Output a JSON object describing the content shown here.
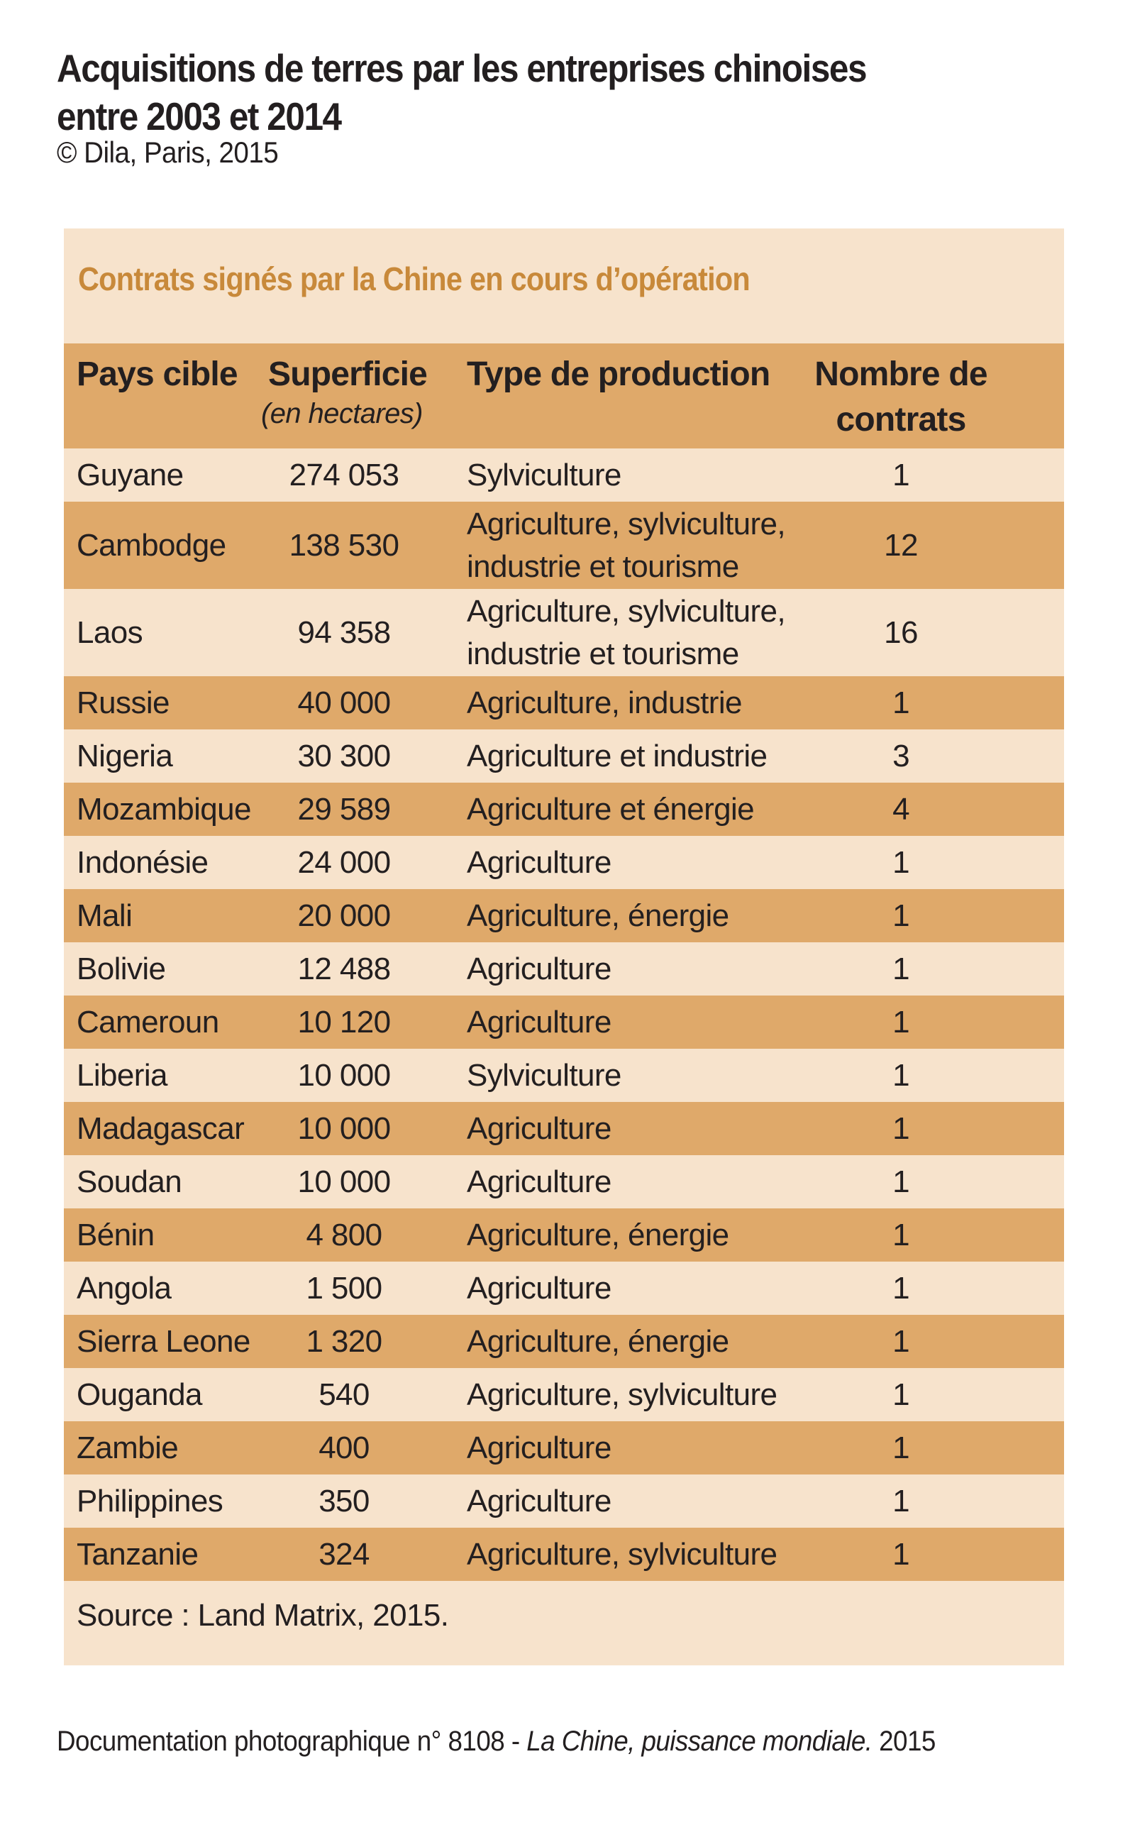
{
  "title": {
    "line1": "Acquisitions de terres par les entreprises chinoises",
    "line2": "entre 2003 et 2014"
  },
  "credit": "© Dila, Paris, 2015",
  "panel": {
    "subtitle": "Contrats signés par la Chine en cours d’opération",
    "headers": {
      "country": "Pays cible",
      "area": "Superficie",
      "area_unit": "(en hectares)",
      "type": "Type de production",
      "count": "Nombre de contrats"
    },
    "rows": [
      {
        "country": "Guyane",
        "area": "274 053",
        "type": "Sylviculture",
        "count": "1"
      },
      {
        "country": "Cambodge",
        "area": "138 530",
        "type": "Agriculture, sylviculture, industrie et tourisme",
        "count": "12"
      },
      {
        "country": "Laos",
        "area": "94 358",
        "type": "Agriculture, sylviculture, industrie et tourisme",
        "count": "16"
      },
      {
        "country": "Russie",
        "area": "40 000",
        "type": "Agriculture, industrie",
        "count": "1"
      },
      {
        "country": "Nigeria",
        "area": "30 300",
        "type": "Agriculture et industrie",
        "count": "3"
      },
      {
        "country": "Mozambique",
        "area": "29 589",
        "type": "Agriculture et énergie",
        "count": "4"
      },
      {
        "country": "Indonésie",
        "area": "24 000",
        "type": "Agriculture",
        "count": "1"
      },
      {
        "country": "Mali",
        "area": "20 000",
        "type": "Agriculture, énergie",
        "count": "1"
      },
      {
        "country": "Bolivie",
        "area": "12 488",
        "type": "Agriculture",
        "count": "1"
      },
      {
        "country": "Cameroun",
        "area": "10 120",
        "type": "Agriculture",
        "count": "1"
      },
      {
        "country": "Liberia",
        "area": "10 000",
        "type": "Sylviculture",
        "count": "1"
      },
      {
        "country": "Madagascar",
        "area": "10 000",
        "type": "Agriculture",
        "count": "1"
      },
      {
        "country": "Soudan",
        "area": "10 000",
        "type": "Agriculture",
        "count": "1"
      },
      {
        "country": "Bénin",
        "area": "4 800",
        "type": "Agriculture, énergie",
        "count": "1"
      },
      {
        "country": "Angola",
        "area": "1 500",
        "type": "Agriculture",
        "count": "1"
      },
      {
        "country": "Sierra Leone",
        "area": "1 320",
        "type": "Agriculture, énergie",
        "count": "1"
      },
      {
        "country": "Ouganda",
        "area": "540",
        "type": "Agriculture, sylviculture",
        "count": "1"
      },
      {
        "country": "Zambie",
        "area": "400",
        "type": "Agriculture",
        "count": "1"
      },
      {
        "country": "Philippines",
        "area": "350",
        "type": "Agriculture",
        "count": "1"
      },
      {
        "country": "Tanzanie",
        "area": "324",
        "type": "Agriculture, sylviculture",
        "count": "1"
      }
    ],
    "source": "Source : Land Matrix, 2015."
  },
  "footer": {
    "prefix": "Documentation photographique n° 8108 - ",
    "italic": "La Chine, puissance mondiale.",
    "suffix": " 2015"
  },
  "colors": {
    "panel_background": "#f7e3cc",
    "row_band": "#dfa96a",
    "subtitle": "#c8893a",
    "text": "#231f20"
  }
}
